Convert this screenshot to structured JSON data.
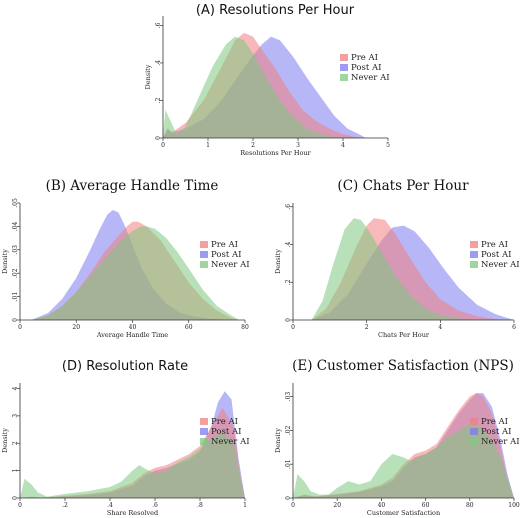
{
  "chart_data": [
    {
      "type": "area",
      "title": "(A) Resolutions Per Hour",
      "xlabel": "Resolutions Per Hour",
      "ylabel": "Density",
      "xlim": [
        0,
        5
      ],
      "ylim": [
        0,
        0.65
      ],
      "xticks": [
        "0",
        "1",
        "2",
        "3",
        "4",
        "5"
      ],
      "yticks": [
        "0",
        ".2",
        ".4",
        ".6"
      ],
      "series": [
        {
          "name": "Pre AI",
          "color": "#f08080",
          "x": [
            0,
            0.1,
            0.2,
            0.5,
            0.9,
            1.3,
            1.6,
            1.8,
            2.0,
            2.2,
            2.5,
            2.8,
            3.1,
            3.4,
            3.7,
            4.0,
            4.3,
            4.5
          ],
          "y": [
            0,
            0.05,
            0.03,
            0.08,
            0.2,
            0.38,
            0.52,
            0.56,
            0.54,
            0.47,
            0.37,
            0.25,
            0.15,
            0.09,
            0.05,
            0.02,
            0.005,
            0
          ]
        },
        {
          "name": "Post AI",
          "color": "#7b7bf0",
          "x": [
            0,
            0.1,
            0.2,
            0.5,
            0.9,
            1.3,
            1.7,
            2.0,
            2.2,
            2.4,
            2.6,
            2.9,
            3.2,
            3.5,
            3.8,
            4.1,
            4.4,
            4.5
          ],
          "y": [
            0,
            0.05,
            0.03,
            0.05,
            0.1,
            0.2,
            0.34,
            0.44,
            0.5,
            0.54,
            0.52,
            0.43,
            0.32,
            0.22,
            0.12,
            0.05,
            0.015,
            0
          ]
        },
        {
          "name": "Never AI",
          "color": "#7fc87f",
          "x": [
            0,
            0.05,
            0.15,
            0.3,
            0.5,
            0.8,
            1.1,
            1.4,
            1.6,
            1.8,
            2.0,
            2.3,
            2.6,
            2.9,
            3.2,
            3.5,
            3.8,
            4.1
          ],
          "y": [
            0,
            0.15,
            0.1,
            0.02,
            0.06,
            0.22,
            0.38,
            0.5,
            0.54,
            0.52,
            0.45,
            0.32,
            0.2,
            0.11,
            0.05,
            0.02,
            0.005,
            0
          ]
        }
      ]
    },
    {
      "type": "area",
      "title": "(B) Average Handle Time",
      "xlabel": "Average Handle Time",
      "ylabel": "Density",
      "xlim": [
        0,
        80
      ],
      "ylim": [
        0,
        0.05
      ],
      "xticks": [
        "0",
        "20",
        "40",
        "60",
        "80"
      ],
      "yticks": [
        "0",
        ".01",
        ".02",
        ".03",
        ".04",
        ".05"
      ],
      "series": [
        {
          "name": "Pre AI",
          "color": "#f08080",
          "x": [
            4,
            10,
            15,
            20,
            25,
            30,
            35,
            38,
            40,
            42,
            45,
            50,
            55,
            60,
            65,
            70,
            75,
            78
          ],
          "y": [
            0,
            0.002,
            0.006,
            0.012,
            0.02,
            0.029,
            0.036,
            0.04,
            0.042,
            0.042,
            0.04,
            0.034,
            0.025,
            0.016,
            0.009,
            0.004,
            0.001,
            0
          ]
        },
        {
          "name": "Post AI",
          "color": "#7b7bf0",
          "x": [
            4,
            10,
            15,
            20,
            25,
            28,
            31,
            33,
            35,
            37,
            40,
            43,
            47,
            52,
            57,
            62,
            68,
            74,
            78
          ],
          "y": [
            0,
            0.003,
            0.009,
            0.018,
            0.03,
            0.038,
            0.045,
            0.047,
            0.046,
            0.041,
            0.032,
            0.023,
            0.014,
            0.007,
            0.003,
            0.0015,
            0.0005,
            0.0001,
            0
          ]
        },
        {
          "name": "Never AI",
          "color": "#7fc87f",
          "x": [
            4,
            10,
            15,
            20,
            25,
            30,
            35,
            40,
            43,
            45,
            48,
            52,
            56,
            60,
            65,
            70,
            75,
            78
          ],
          "y": [
            0,
            0.002,
            0.006,
            0.012,
            0.019,
            0.026,
            0.033,
            0.038,
            0.04,
            0.04,
            0.039,
            0.035,
            0.029,
            0.022,
            0.013,
            0.006,
            0.002,
            0
          ]
        }
      ]
    },
    {
      "type": "area",
      "title": "(C) Chats Per Hour",
      "xlabel": "Chats Per Hour",
      "ylabel": "Density",
      "xlim": [
        0,
        6
      ],
      "ylim": [
        0,
        0.62
      ],
      "xticks": [
        "0",
        "2",
        "4",
        "6"
      ],
      "yticks": [
        "0",
        ".2",
        ".4",
        ".6"
      ],
      "series": [
        {
          "name": "Pre AI",
          "color": "#f08080",
          "x": [
            0.5,
            0.9,
            1.3,
            1.7,
            2.0,
            2.2,
            2.5,
            2.8,
            3.2,
            3.6,
            4.0,
            4.5,
            5.0,
            5.5,
            6.0
          ],
          "y": [
            0,
            0.06,
            0.2,
            0.38,
            0.5,
            0.54,
            0.53,
            0.45,
            0.32,
            0.2,
            0.11,
            0.05,
            0.02,
            0.005,
            0
          ]
        },
        {
          "name": "Post AI",
          "color": "#7b7bf0",
          "x": [
            0.5,
            1.0,
            1.5,
            2.0,
            2.4,
            2.7,
            3.0,
            3.3,
            3.7,
            4.1,
            4.5,
            5.0,
            5.5,
            6.0
          ],
          "y": [
            0,
            0.04,
            0.14,
            0.3,
            0.42,
            0.49,
            0.5,
            0.47,
            0.38,
            0.27,
            0.17,
            0.08,
            0.03,
            0
          ]
        },
        {
          "name": "Never AI",
          "color": "#7fc87f",
          "x": [
            0.5,
            0.8,
            1.1,
            1.4,
            1.65,
            1.85,
            2.1,
            2.4,
            2.8,
            3.2,
            3.6,
            4.0,
            4.5,
            5.0
          ],
          "y": [
            0,
            0.1,
            0.3,
            0.48,
            0.54,
            0.53,
            0.46,
            0.36,
            0.23,
            0.13,
            0.06,
            0.025,
            0.008,
            0
          ]
        }
      ]
    },
    {
      "type": "area",
      "title": "(D) Resolution Rate",
      "xlabel": "Share Resolved",
      "ylabel": "Density",
      "xlim": [
        0,
        1
      ],
      "ylim": [
        0,
        4.2
      ],
      "xticks": [
        "0",
        ".2",
        ".4",
        ".6",
        ".8",
        "1"
      ],
      "yticks": [
        "0",
        "1",
        "2",
        "3",
        "4"
      ],
      "series": [
        {
          "name": "Pre AI",
          "color": "#f08080",
          "x": [
            0,
            0.05,
            0.1,
            0.2,
            0.3,
            0.4,
            0.5,
            0.55,
            0.6,
            0.65,
            0.7,
            0.75,
            0.8,
            0.85,
            0.9,
            0.95,
            0.98,
            1.0
          ],
          "y": [
            0,
            0.05,
            0.02,
            0.08,
            0.15,
            0.25,
            0.55,
            0.9,
            1.1,
            1.2,
            1.4,
            1.6,
            1.9,
            2.6,
            3.3,
            2.6,
            0.8,
            0
          ]
        },
        {
          "name": "Post AI",
          "color": "#7b7bf0",
          "x": [
            0,
            0.1,
            0.2,
            0.3,
            0.4,
            0.5,
            0.55,
            0.6,
            0.65,
            0.7,
            0.75,
            0.8,
            0.85,
            0.88,
            0.91,
            0.94,
            0.97,
            1.0
          ],
          "y": [
            0,
            0.02,
            0.05,
            0.1,
            0.2,
            0.45,
            0.8,
            1.0,
            1.1,
            1.25,
            1.4,
            1.7,
            2.6,
            3.5,
            3.9,
            3.6,
            1.5,
            0
          ]
        },
        {
          "name": "Never AI",
          "color": "#7fc87f",
          "x": [
            0,
            0.02,
            0.05,
            0.08,
            0.12,
            0.2,
            0.3,
            0.4,
            0.45,
            0.5,
            0.53,
            0.56,
            0.6,
            0.65,
            0.7,
            0.75,
            0.8,
            0.85,
            0.9,
            0.95,
            0.98,
            1.0
          ],
          "y": [
            0,
            0.7,
            0.5,
            0.2,
            0.05,
            0.15,
            0.25,
            0.4,
            0.6,
            1.0,
            1.2,
            1.05,
            0.9,
            1.0,
            1.3,
            1.5,
            1.8,
            2.2,
            2.4,
            2.0,
            0.7,
            0
          ]
        }
      ]
    },
    {
      "type": "area",
      "title": "(E) Customer Satisfaction (NPS)",
      "xlabel": "Customer Satisfaction",
      "ylabel": "Density",
      "xlim": [
        0,
        100
      ],
      "ylim": [
        0,
        0.034
      ],
      "xticks": [
        "0",
        "20",
        "40",
        "60",
        "80",
        "100"
      ],
      "yticks": [
        "0",
        ".01",
        ".02",
        ".03"
      ],
      "series": [
        {
          "name": "Pre AI",
          "color": "#f08080",
          "x": [
            0,
            5,
            10,
            20,
            30,
            40,
            45,
            50,
            55,
            60,
            65,
            70,
            75,
            80,
            83,
            86,
            90,
            94,
            97,
            100
          ],
          "y": [
            0,
            0.001,
            0.0005,
            0.0012,
            0.002,
            0.004,
            0.006,
            0.01,
            0.013,
            0.014,
            0.016,
            0.021,
            0.026,
            0.03,
            0.031,
            0.03,
            0.025,
            0.015,
            0.006,
            0
          ]
        },
        {
          "name": "Post AI",
          "color": "#7b7bf0",
          "x": [
            0,
            5,
            10,
            20,
            30,
            40,
            45,
            50,
            55,
            60,
            65,
            70,
            75,
            80,
            83,
            86,
            90,
            94,
            97,
            100
          ],
          "y": [
            0,
            0.0008,
            0.0004,
            0.001,
            0.0018,
            0.0035,
            0.005,
            0.009,
            0.012,
            0.013,
            0.015,
            0.02,
            0.025,
            0.029,
            0.031,
            0.031,
            0.027,
            0.017,
            0.007,
            0
          ]
        },
        {
          "name": "Never AI",
          "color": "#7fc87f",
          "x": [
            0,
            2,
            5,
            8,
            12,
            16,
            20,
            25,
            30,
            35,
            40,
            45,
            50,
            53,
            56,
            60,
            65,
            70,
            75,
            80,
            85,
            90,
            94,
            97,
            100
          ],
          "y": [
            0,
            0.007,
            0.005,
            0.002,
            0.001,
            0.001,
            0.003,
            0.005,
            0.004,
            0.005,
            0.01,
            0.013,
            0.012,
            0.011,
            0.012,
            0.013,
            0.015,
            0.018,
            0.02,
            0.022,
            0.021,
            0.017,
            0.012,
            0.006,
            0
          ]
        }
      ]
    }
  ]
}
